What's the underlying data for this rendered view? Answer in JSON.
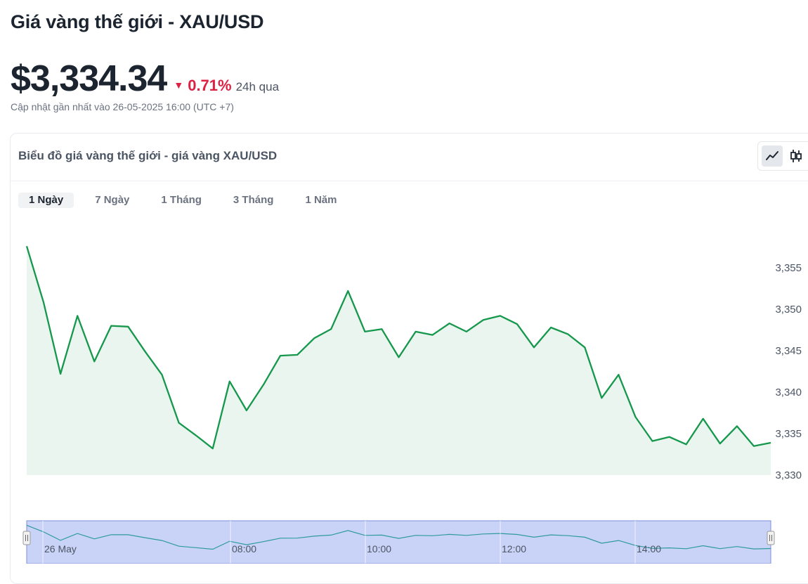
{
  "page": {
    "title": "Giá vàng thế giới - XAU/USD",
    "price": "$3,334.34",
    "change_pct": "0.71%",
    "change_period": "24h qua",
    "change_direction": "down",
    "updated": "Cập nhật gần nhất vào 26-05-2025 16:00 (UTC +7)"
  },
  "card": {
    "title": "Biểu đồ giá vàng thế giới - giá vàng XAU/USD",
    "chart_types": [
      {
        "name": "line-chart-icon",
        "active": true
      },
      {
        "name": "candlestick-icon",
        "active": false
      }
    ],
    "ranges": [
      {
        "label": "1 Ngày",
        "active": true
      },
      {
        "label": "7 Ngày",
        "active": false
      },
      {
        "label": "1 Tháng",
        "active": false
      },
      {
        "label": "3 Tháng",
        "active": false
      },
      {
        "label": "1 Năm",
        "active": false
      }
    ]
  },
  "colors": {
    "line": "#15974c",
    "area": "#e9f5ee",
    "down": "#dc2143",
    "navigator_fill": "#c9d3f7",
    "navigator_line": "#2e9a9e"
  },
  "chart_data": {
    "type": "area",
    "x_labels": [
      "26 May",
      "08:00",
      "10:00",
      "12:00",
      "14:00"
    ],
    "y_ticks": [
      3330,
      3335,
      3340,
      3345,
      3350,
      3355
    ],
    "ylim": [
      3330,
      3356
    ],
    "series": [
      {
        "values": [
          3357.6,
          3350.8,
          3342.2,
          3349.2,
          3343.7,
          3348.0,
          3347.9,
          3344.9,
          3342.1,
          3336.3,
          3334.8,
          3333.2,
          3341.3,
          3337.8,
          3340.9,
          3344.4,
          3344.5,
          3346.5,
          3347.6,
          3352.2,
          3347.3,
          3347.6,
          3344.2,
          3347.3,
          3346.9,
          3348.3,
          3347.3,
          3348.7,
          3349.2,
          3348.2,
          3345.4,
          3347.8,
          3347.0,
          3345.4,
          3339.3,
          3342.1,
          3337.0,
          3334.1,
          3334.6,
          3333.7,
          3336.8,
          3333.8,
          3335.9,
          3333.5,
          3333.9
        ]
      }
    ]
  }
}
